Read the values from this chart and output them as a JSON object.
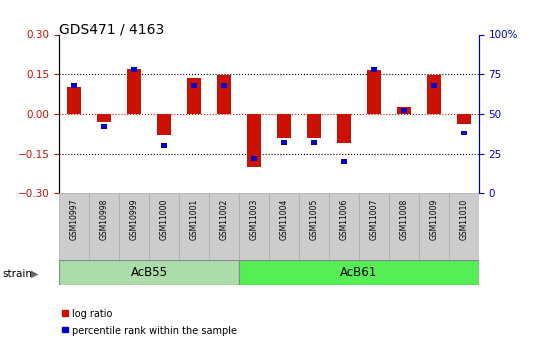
{
  "title": "GDS471 / 4163",
  "samples": [
    "GSM10997",
    "GSM10998",
    "GSM10999",
    "GSM11000",
    "GSM11001",
    "GSM11002",
    "GSM11003",
    "GSM11004",
    "GSM11005",
    "GSM11006",
    "GSM11007",
    "GSM11008",
    "GSM11009",
    "GSM11010"
  ],
  "log_ratio": [
    0.1,
    -0.03,
    0.17,
    -0.08,
    0.135,
    0.145,
    -0.2,
    -0.09,
    -0.09,
    -0.11,
    0.165,
    0.025,
    0.145,
    -0.04
  ],
  "percentile": [
    68,
    42,
    78,
    30,
    68,
    68,
    22,
    32,
    32,
    20,
    78,
    52,
    68,
    38
  ],
  "group1_count": 6,
  "group2_count": 8,
  "group1_label": "AcB55",
  "group2_label": "AcB61",
  "group1_color": "#aaddaa",
  "group2_color": "#55ee55",
  "bar_color_red": "#cc1100",
  "bar_color_blue": "#0000cc",
  "ylim": [
    -0.3,
    0.3
  ],
  "y2lim": [
    0,
    100
  ],
  "yticks_left": [
    -0.3,
    -0.15,
    0.0,
    0.15,
    0.3
  ],
  "yticks_right": [
    0,
    25,
    50,
    75,
    100
  ],
  "left_axis_color": "#cc1100",
  "right_axis_color": "#0000cc",
  "legend_items": [
    "log ratio",
    "percentile rank within the sample"
  ],
  "legend_colors": [
    "#cc1100",
    "#0000cc"
  ],
  "strain_label": "strain",
  "cell_color": "#cccccc",
  "cell_edge_color": "#aaaaaa"
}
